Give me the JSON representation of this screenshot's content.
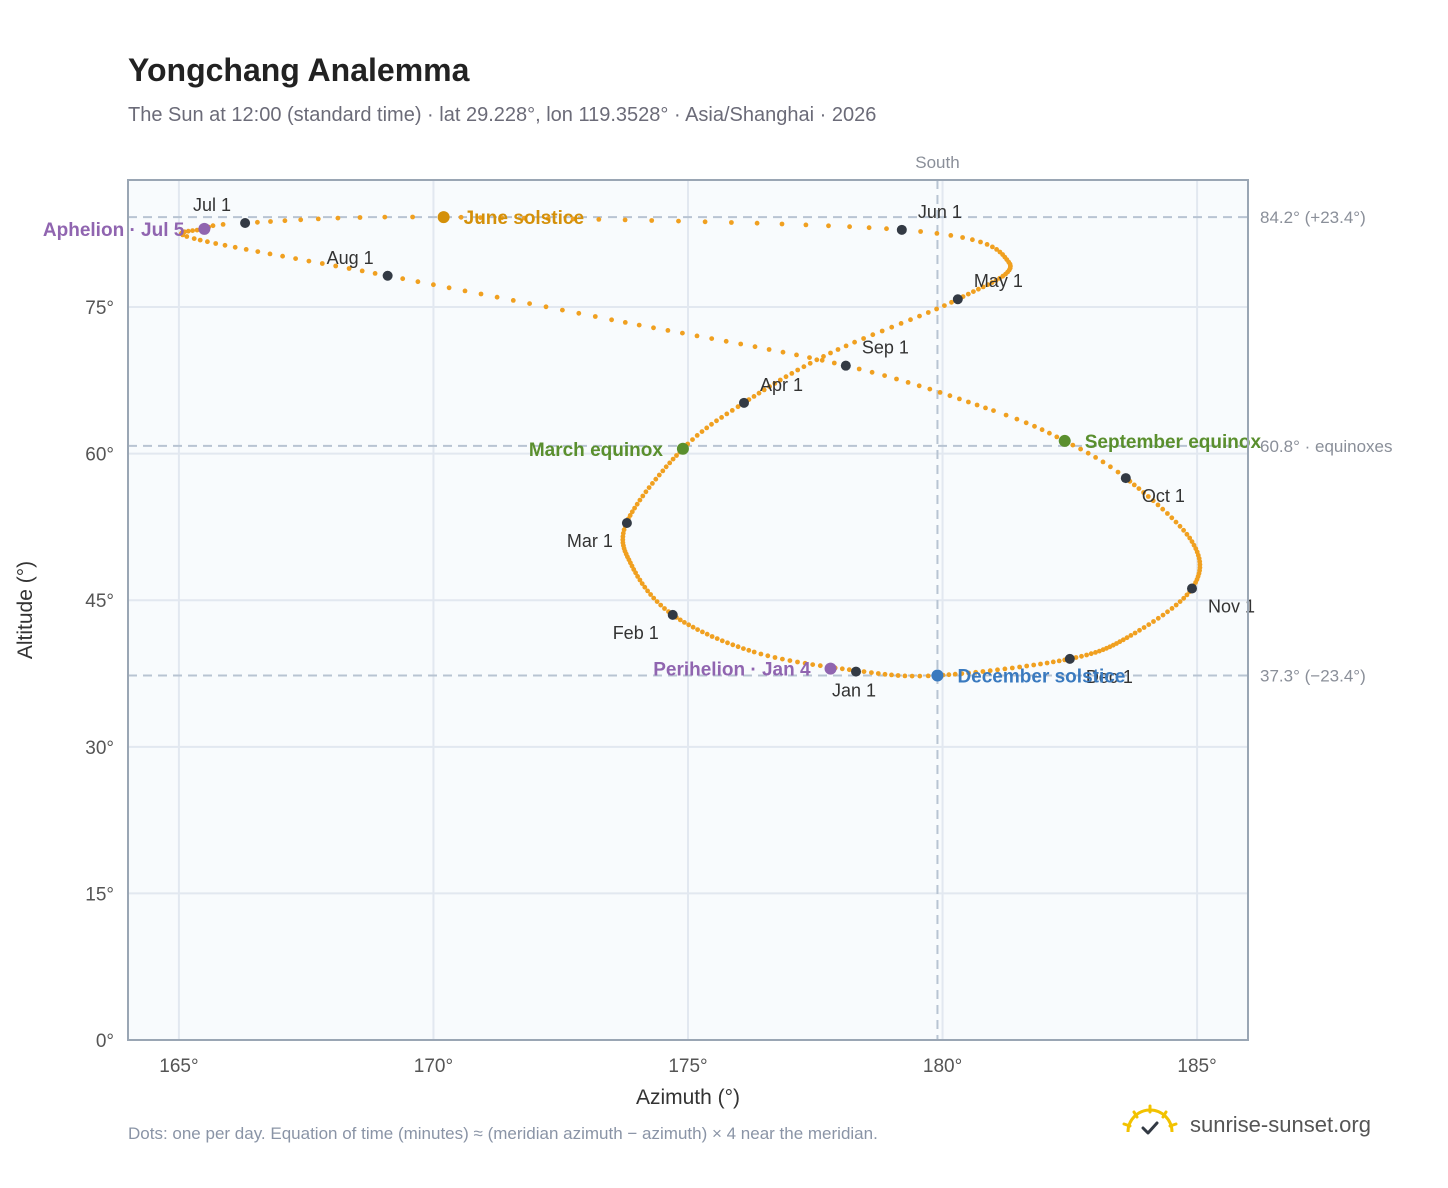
{
  "title": "Yongchang Analemma",
  "subtitle": "The Sun at 12:00 (standard time) · lat 29.228°, lon 119.3528° · Asia/Shanghai · 2026",
  "footnote": "Dots: one per day. Equation of time (minutes) ≈ (meridian azimuth − azimuth) × 4 near the meridian.",
  "brand": {
    "name": "sunrise-sunset.org",
    "icon": "sun-check-icon"
  },
  "colors": {
    "curve": "#f0a020",
    "month_marker": "#333a44",
    "equinox": "#5a8f2e",
    "june_solstice": "#d4900a",
    "december_solstice": "#3a7abf",
    "aphelion_perihelion": "#9065b0",
    "grid": "#e2e8f0",
    "plot_bg": "#f8fbfd",
    "ref_line": "#b8c4d2"
  },
  "chart_data": {
    "type": "scatter",
    "title": "Yongchang Analemma",
    "xlabel": "Azimuth (°)",
    "ylabel": "Altitude (°)",
    "xlim": [
      164,
      186
    ],
    "ylim": [
      0,
      88
    ],
    "xticks": [
      165,
      170,
      175,
      180,
      185
    ],
    "xtick_labels": [
      "165°",
      "170°",
      "175°",
      "180°",
      "185°"
    ],
    "yticks": [
      0,
      15,
      30,
      45,
      60,
      75
    ],
    "ytick_labels": [
      "0°",
      "15°",
      "30°",
      "45°",
      "60°",
      "75°"
    ],
    "grid": true,
    "south_line": {
      "x": 179.9,
      "label": "South"
    },
    "reference_lines": [
      {
        "y": 84.2,
        "label": "84.2° (+23.4°)"
      },
      {
        "y": 60.8,
        "label": "60.8° · equinoxes"
      },
      {
        "y": 37.3,
        "label": "37.3° (−23.4°)"
      }
    ],
    "curve_anchor_points": [
      {
        "doy": 1,
        "az": 178.3,
        "alt": 37.8
      },
      {
        "doy": 15,
        "az": 176.3,
        "alt": 39.7
      },
      {
        "doy": 32,
        "az": 174.7,
        "alt": 43.5
      },
      {
        "doy": 46,
        "az": 173.9,
        "alt": 48.5
      },
      {
        "doy": 60,
        "az": 173.8,
        "alt": 53.0
      },
      {
        "doy": 79,
        "az": 174.9,
        "alt": 60.5
      },
      {
        "doy": 91,
        "az": 176.1,
        "alt": 65.2
      },
      {
        "doy": 106,
        "az": 177.8,
        "alt": 70.3
      },
      {
        "doy": 121,
        "az": 180.3,
        "alt": 75.8
      },
      {
        "doy": 138,
        "az": 181.3,
        "alt": 79.6
      },
      {
        "doy": 152,
        "az": 179.2,
        "alt": 82.9
      },
      {
        "doy": 172,
        "az": 170.2,
        "alt": 84.2
      },
      {
        "doy": 182,
        "az": 166.3,
        "alt": 83.6
      },
      {
        "doy": 186,
        "az": 165.5,
        "alt": 83.0
      },
      {
        "doy": 196,
        "az": 165.3,
        "alt": 82.0
      },
      {
        "doy": 213,
        "az": 169.1,
        "alt": 78.2
      },
      {
        "doy": 227,
        "az": 173.5,
        "alt": 73.7
      },
      {
        "doy": 244,
        "az": 178.1,
        "alt": 69.0
      },
      {
        "doy": 258,
        "az": 181.0,
        "alt": 64.4
      },
      {
        "doy": 266,
        "az": 182.4,
        "alt": 61.3
      },
      {
        "doy": 274,
        "az": 183.6,
        "alt": 57.5
      },
      {
        "doy": 290,
        "az": 184.9,
        "alt": 51.0
      },
      {
        "doy": 305,
        "az": 184.9,
        "alt": 46.2
      },
      {
        "doy": 320,
        "az": 183.7,
        "alt": 41.4
      },
      {
        "doy": 335,
        "az": 182.5,
        "alt": 39.0
      },
      {
        "doy": 355,
        "az": 179.9,
        "alt": 37.3
      },
      {
        "doy": 366,
        "az": 178.3,
        "alt": 37.8
      }
    ],
    "month_markers": [
      {
        "label": "Jan 1",
        "az": 178.3,
        "alt": 37.7,
        "pos": "below"
      },
      {
        "label": "Feb 1",
        "az": 174.7,
        "alt": 43.5,
        "pos": "below-left"
      },
      {
        "label": "Mar 1",
        "az": 173.8,
        "alt": 52.9,
        "pos": "below-left"
      },
      {
        "label": "Apr 1",
        "az": 176.1,
        "alt": 65.2,
        "pos": "above-right"
      },
      {
        "label": "May 1",
        "az": 180.3,
        "alt": 75.8,
        "pos": "above-right"
      },
      {
        "label": "Jun 1",
        "az": 179.2,
        "alt": 82.9,
        "pos": "above-right"
      },
      {
        "label": "Jul 1",
        "az": 166.3,
        "alt": 83.6,
        "pos": "above-left"
      },
      {
        "label": "Aug 1",
        "az": 169.1,
        "alt": 78.2,
        "pos": "above-left"
      },
      {
        "label": "Sep 1",
        "az": 178.1,
        "alt": 69.0,
        "pos": "above-right"
      },
      {
        "label": "Oct 1",
        "az": 183.6,
        "alt": 57.5,
        "pos": "below-right"
      },
      {
        "label": "Nov 1",
        "az": 184.9,
        "alt": 46.2,
        "pos": "below-right"
      },
      {
        "label": "Dec 1",
        "az": 182.5,
        "alt": 39.0,
        "pos": "below-right"
      }
    ],
    "events": [
      {
        "label": "March equinox",
        "az": 174.9,
        "alt": 60.5,
        "color": "#5a8f2e",
        "pos": "left"
      },
      {
        "label": "June solstice",
        "az": 170.2,
        "alt": 84.2,
        "color": "#d4900a",
        "pos": "right"
      },
      {
        "label": "September equinox",
        "az": 182.4,
        "alt": 61.3,
        "color": "#5a8f2e",
        "pos": "right"
      },
      {
        "label": "December solstice",
        "az": 179.9,
        "alt": 37.3,
        "color": "#3a7abf",
        "pos": "right"
      },
      {
        "label": "Aphelion · Jul 5",
        "az": 165.5,
        "alt": 83.0,
        "color": "#9065b0",
        "pos": "left"
      },
      {
        "label": "Perihelion · Jan 4",
        "az": 177.8,
        "alt": 38.0,
        "color": "#9065b0",
        "pos": "left"
      }
    ]
  }
}
